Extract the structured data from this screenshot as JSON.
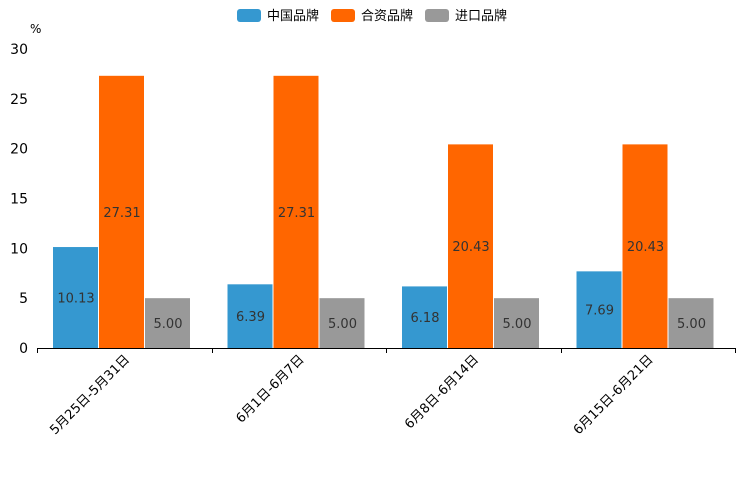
{
  "chart_data": {
    "type": "bar",
    "title": "",
    "ylabel": "%",
    "xlabel": "",
    "ylim": [
      0,
      30
    ],
    "yticks": [
      0,
      5,
      10,
      15,
      20,
      25,
      30
    ],
    "legend_position": "top-center",
    "grid": false,
    "categories": [
      "5月25日-5月31日",
      "6月1日-6月7日",
      "6月8日-6月14日",
      "6月15日-6月21日"
    ],
    "series": [
      {
        "name": "中国品牌",
        "color": "#3598d0",
        "values": [
          10.13,
          6.39,
          6.18,
          7.69
        ],
        "labels": [
          "10.13",
          "6.39",
          "6.18",
          "7.69"
        ]
      },
      {
        "name": "合资品牌",
        "color": "#ff6600",
        "values": [
          27.31,
          27.31,
          20.43,
          20.43
        ],
        "labels": [
          "27.31",
          "27.31",
          "20.43",
          "20.43"
        ]
      },
      {
        "name": "进口品牌",
        "color": "#999999",
        "values": [
          5.0,
          5.0,
          5.0,
          5.0
        ],
        "labels": [
          "5.00",
          "5.00",
          "5.00",
          "5.00"
        ]
      }
    ]
  }
}
